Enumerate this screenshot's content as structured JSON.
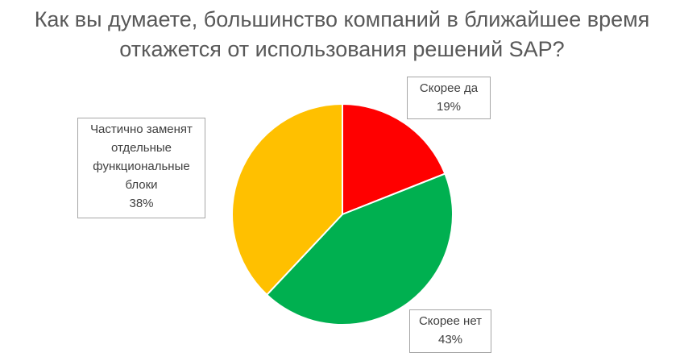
{
  "chart_data": {
    "type": "pie",
    "title": "Как вы думаете, большинство компаний в ближайшее время откажется от использования решений SAP?",
    "title_lines": [
      "Как вы думаете, большинство компаний в ближайшее время",
      "откажется от использования решений SAP?"
    ],
    "start_angle": "top",
    "direction": "clockwise",
    "legend": "none",
    "slices": [
      {
        "label": "Скорее да",
        "value": 19,
        "value_label": "19%",
        "color": "#FF0000"
      },
      {
        "label": "Скорее нет",
        "value": 43,
        "value_label": "43%",
        "color": "#00B050"
      },
      {
        "label": "Частично заменят отдельные функциональные блоки",
        "label_lines": [
          "Частично заменят",
          "отдельные",
          "функциональные",
          "блоки"
        ],
        "value": 38,
        "value_label": "38%",
        "color": "#FFC000"
      }
    ]
  }
}
